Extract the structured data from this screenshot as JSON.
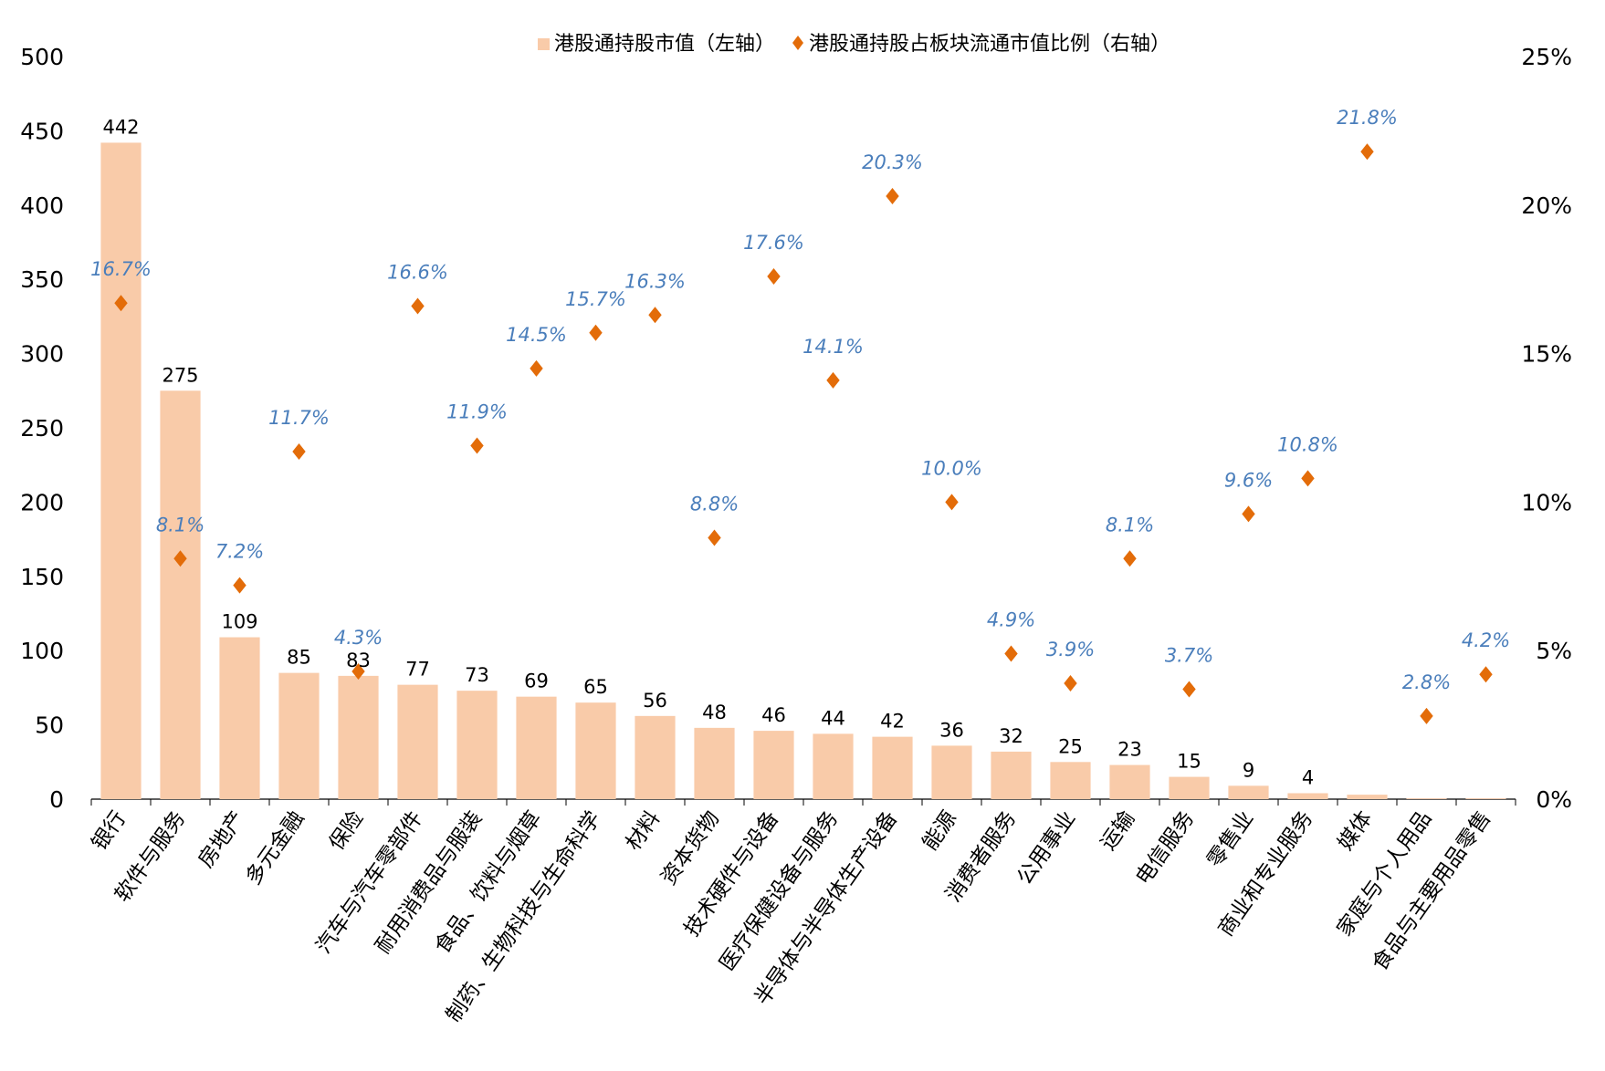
{
  "chart_data": {
    "type": "bar",
    "title": "",
    "xlabel": "",
    "ylabel": "",
    "ylim": [
      0,
      500
    ],
    "y2lim": [
      0,
      25
    ],
    "y_ticks": [
      "0",
      "50",
      "100",
      "150",
      "200",
      "250",
      "300",
      "350",
      "400",
      "450",
      "500"
    ],
    "y2_ticks": [
      "0%",
      "5%",
      "10%",
      "15%",
      "20%",
      "25%"
    ],
    "legend_position": "top-center",
    "categories": [
      "银行",
      "软件与服务",
      "房地产",
      "多元金融",
      "保险",
      "汽车与汽车零部件",
      "耐用消费品与服装",
      "食品、饮料与烟草",
      "制药、生物科技与生命科学",
      "材料",
      "资本货物",
      "技术硬件与设备",
      "医疗保健设备与服务",
      "半导体与半导体生产设备",
      "能源",
      "消费者服务",
      "公用事业",
      "运输",
      "电信服务",
      "零售业",
      "商业和专业服务",
      "媒体",
      "家庭与个人用品",
      "食品与主要用品零售"
    ],
    "series": [
      {
        "name": "港股通持股市值（左轴）",
        "kind": "bar",
        "axis": "left",
        "color": "#f9cba9",
        "values": [
          442,
          275,
          109,
          85,
          83,
          77,
          73,
          69,
          65,
          56,
          48,
          46,
          44,
          42,
          36,
          32,
          25,
          23,
          15,
          9,
          4,
          3,
          0.5,
          0.5
        ],
        "labels": [
          "442",
          "275",
          "109",
          "85",
          "83",
          "77",
          "73",
          "69",
          "65",
          "56",
          "48",
          "46",
          "44",
          "42",
          "36",
          "32",
          "25",
          "23",
          "15",
          "9",
          "4",
          "",
          "",
          ""
        ]
      },
      {
        "name": "港股通持股占板块流通市值比例（右轴）",
        "kind": "scatter",
        "axis": "right",
        "color": "#e36c09",
        "label_color": "#4a7ebb",
        "values": [
          16.7,
          8.1,
          7.2,
          11.7,
          4.3,
          16.6,
          11.9,
          14.5,
          15.7,
          16.3,
          8.8,
          17.6,
          14.1,
          20.3,
          10.0,
          4.9,
          3.9,
          8.1,
          3.7,
          9.6,
          10.8,
          21.8,
          2.8,
          4.2
        ],
        "labels": [
          "16.7%",
          "8.1%",
          "7.2%",
          "11.7%",
          "4.3%",
          "16.6%",
          "11.9%",
          "14.5%",
          "15.7%",
          "16.3%",
          "8.8%",
          "17.6%",
          "14.1%",
          "20.3%",
          "10.0%",
          "4.9%",
          "3.9%",
          "8.1%",
          "3.7%",
          "9.6%",
          "10.8%",
          "21.8%",
          "2.8%",
          "4.2%"
        ]
      }
    ]
  }
}
